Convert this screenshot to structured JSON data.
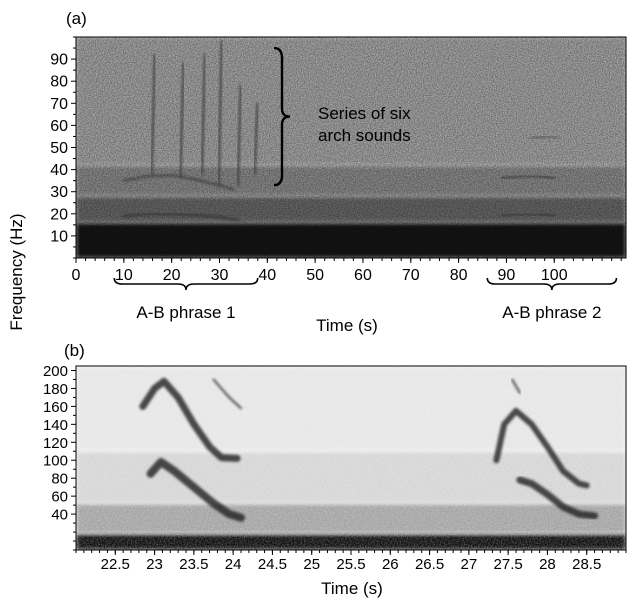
{
  "chart_data": [
    {
      "panel_label": "(a)",
      "type": "heatmap",
      "description_kind": "spectrogram",
      "xlabel": "Time (s)",
      "ylabel": "Frequency (Hz)",
      "xlim": [
        0,
        115
      ],
      "ylim": [
        0,
        100
      ],
      "x_ticks": [
        0,
        10,
        20,
        30,
        40,
        50,
        60,
        70,
        80,
        90,
        100
      ],
      "y_ticks": [
        10,
        20,
        30,
        40,
        50,
        60,
        70,
        80,
        90
      ],
      "noise_bands": [
        {
          "y_from": 0,
          "y_to": 16,
          "level": 0.9
        },
        {
          "y_from": 16,
          "y_to": 28,
          "level": 0.55
        },
        {
          "y_from": 28,
          "y_to": 42,
          "level": 0.4
        },
        {
          "y_from": 42,
          "y_to": 100,
          "level": 0.28
        }
      ],
      "contours": [
        {
          "points": [
            [
              10,
              19
            ],
            [
              15,
              20
            ],
            [
              20,
              20
            ],
            [
              25,
              19.5
            ],
            [
              30,
              18.5
            ],
            [
              34,
              17
            ]
          ],
          "weight": 2.5
        },
        {
          "points": [
            [
              10,
              35
            ],
            [
              15,
              37
            ],
            [
              20,
              37.5
            ],
            [
              25,
              35.5
            ],
            [
              30,
              33
            ],
            [
              33,
              31
            ]
          ],
          "weight": 2.0
        },
        {
          "points": [
            [
              89,
              36
            ],
            [
              93,
              37
            ],
            [
              97,
              37
            ],
            [
              100,
              36
            ]
          ],
          "weight": 2.2
        },
        {
          "points": [
            [
              89,
              19
            ],
            [
              93,
              20
            ],
            [
              97,
              20
            ],
            [
              100,
              19
            ]
          ],
          "weight": 2.2
        },
        {
          "points": [
            [
              95,
              54
            ],
            [
              99,
              55
            ],
            [
              101,
              54
            ]
          ],
          "weight": 1.3
        }
      ],
      "arch_sounds": [
        {
          "x": 16.5,
          "y_top": 92,
          "y_bottom": 38
        },
        {
          "x": 22.5,
          "y_top": 88,
          "y_bottom": 37
        },
        {
          "x": 27,
          "y_top": 92,
          "y_bottom": 38
        },
        {
          "x": 30.5,
          "y_top": 98,
          "y_bottom": 33
        },
        {
          "x": 34.5,
          "y_top": 78,
          "y_bottom": 33
        },
        {
          "x": 38,
          "y_top": 70,
          "y_bottom": 38
        }
      ],
      "annotations": [
        {
          "text_lines": [
            "Series of six",
            "arch sounds"
          ],
          "brace_y_range": [
            33,
            95
          ]
        }
      ],
      "phrases": [
        {
          "label": "A-B phrase 1",
          "x_range": [
            8,
            38
          ]
        },
        {
          "label": "A-B phrase 2",
          "x_range": [
            86,
            113
          ]
        }
      ]
    },
    {
      "panel_label": "(b)",
      "type": "heatmap",
      "description_kind": "spectrogram",
      "xlabel": "Time (s)",
      "ylabel": "Frequency (Hz)",
      "xlim": [
        22.0,
        29.0
      ],
      "ylim": [
        0,
        205
      ],
      "x_ticks": [
        "22.5",
        "23",
        "23.5",
        "24",
        "24.5",
        "25",
        "25.5",
        "26",
        "26.5",
        "27",
        "27.5",
        "28",
        "28.5"
      ],
      "y_ticks": [
        40,
        60,
        80,
        100,
        120,
        140,
        160,
        180,
        200
      ],
      "noise_bands": [
        {
          "y_from": 0,
          "y_to": 18,
          "level": 0.95
        },
        {
          "y_from": 18,
          "y_to": 52,
          "level": 0.35
        },
        {
          "y_from": 52,
          "y_to": 110,
          "level": 0.15
        },
        {
          "y_from": 110,
          "y_to": 205,
          "level": 0.08
        }
      ],
      "contours": [
        {
          "points": [
            [
              22.85,
              160
            ],
            [
              23.0,
              180
            ],
            [
              23.12,
              188
            ],
            [
              23.3,
              170
            ],
            [
              23.5,
              140
            ],
            [
              23.7,
              115
            ],
            [
              23.85,
              103
            ],
            [
              24.05,
              102
            ]
          ],
          "weight": 7
        },
        {
          "points": [
            [
              22.95,
              85
            ],
            [
              23.08,
              98
            ],
            [
              23.25,
              88
            ],
            [
              23.5,
              70
            ],
            [
              23.75,
              52
            ],
            [
              23.95,
              40
            ],
            [
              24.1,
              36
            ]
          ],
          "weight": 8
        },
        {
          "points": [
            [
              27.35,
              100
            ],
            [
              27.45,
              140
            ],
            [
              27.6,
              155
            ],
            [
              27.8,
              140
            ],
            [
              28.0,
              115
            ],
            [
              28.2,
              88
            ],
            [
              28.4,
              74
            ],
            [
              28.5,
              72
            ]
          ],
          "weight": 6
        },
        {
          "points": [
            [
              27.65,
              78
            ],
            [
              27.8,
              74
            ],
            [
              28.0,
              62
            ],
            [
              28.2,
              48
            ],
            [
              28.4,
              40
            ],
            [
              28.6,
              38
            ]
          ],
          "weight": 7
        },
        {
          "points": [
            [
              23.75,
              190
            ],
            [
              23.95,
              170
            ],
            [
              24.1,
              158
            ]
          ],
          "weight": 2
        },
        {
          "points": [
            [
              27.55,
              190
            ],
            [
              27.65,
              175
            ]
          ],
          "weight": 2
        }
      ]
    }
  ]
}
